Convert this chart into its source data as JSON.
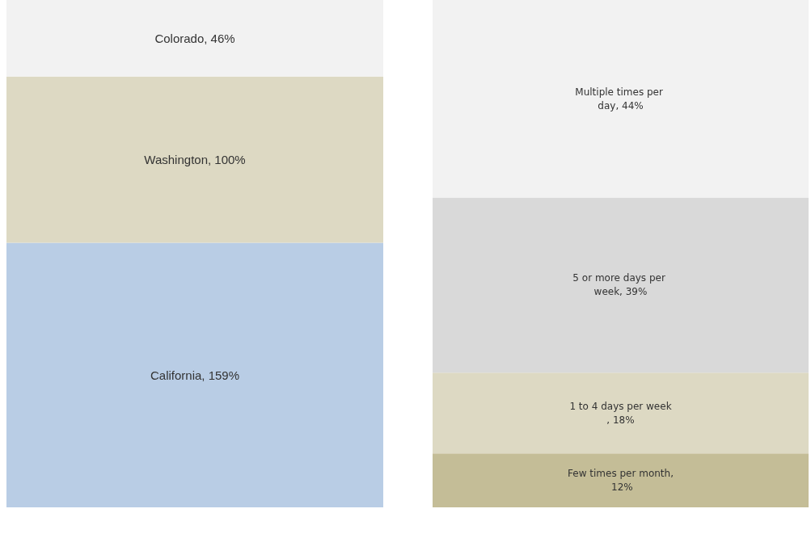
{
  "chart_data": [
    {
      "type": "bar",
      "stacked": true,
      "categories": [
        null
      ],
      "series": [
        {
          "color": "#b9cde5",
          "values": [
            159
          ],
          "value_labels": [
            "California, 159%"
          ]
        },
        {
          "color": "#ddd9c3",
          "values": [
            100
          ],
          "value_labels": [
            "Washington, 100%"
          ]
        },
        {
          "color": "#f2f2f2",
          "values": [
            46
          ],
          "value_labels": [
            "Colorado, 46%"
          ]
        }
      ]
    },
    {
      "type": "bar",
      "stacked": true,
      "categories": [
        null
      ],
      "series": [
        {
          "color": "#c4bd97",
          "values": [
            12
          ],
          "value_labels": [
            "Few times per month, 12%"
          ]
        },
        {
          "color": "#ddd9c3",
          "values": [
            18
          ],
          "value_labels": [
            "1 to 4 days per week, 18%"
          ]
        },
        {
          "color": "#d9d9d9",
          "values": [
            39
          ],
          "value_labels": [
            "5 or more days per week, 39%"
          ]
        },
        {
          "color": "#f2f2f2",
          "values": [
            44
          ],
          "value_labels": [
            "Multiple times per day, 44%"
          ]
        }
      ]
    }
  ]
}
